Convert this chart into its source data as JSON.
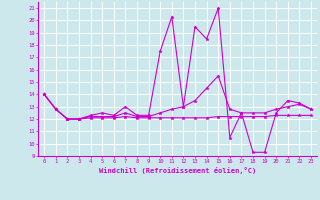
{
  "xlabel": "Windchill (Refroidissement éolien,°C)",
  "xlim": [
    -0.5,
    23.5
  ],
  "ylim": [
    9,
    21.5
  ],
  "yticks": [
    9,
    10,
    11,
    12,
    13,
    14,
    15,
    16,
    17,
    18,
    19,
    20,
    21
  ],
  "xticks": [
    0,
    1,
    2,
    3,
    4,
    5,
    6,
    7,
    8,
    9,
    10,
    11,
    12,
    13,
    14,
    15,
    16,
    17,
    18,
    19,
    20,
    21,
    22,
    23
  ],
  "background_color": "#cce8ed",
  "grid_color": "#ffffff",
  "line_color": "#cc00cc",
  "series": [
    [
      14.0,
      12.8,
      12.0,
      12.0,
      12.3,
      12.5,
      12.3,
      13.0,
      12.3,
      12.3,
      17.5,
      20.3,
      13.0,
      19.5,
      18.5,
      21.0,
      10.5,
      12.5,
      9.3,
      9.3,
      12.5,
      13.5,
      13.3,
      12.8
    ],
    [
      14.0,
      12.8,
      12.0,
      12.0,
      12.2,
      12.2,
      12.2,
      12.5,
      12.2,
      12.2,
      12.5,
      12.8,
      13.0,
      13.5,
      14.5,
      15.5,
      12.8,
      12.5,
      12.5,
      12.5,
      12.8,
      13.0,
      13.2,
      12.8
    ],
    [
      14.0,
      12.8,
      12.0,
      12.0,
      12.1,
      12.1,
      12.1,
      12.2,
      12.1,
      12.1,
      12.1,
      12.1,
      12.1,
      12.1,
      12.1,
      12.2,
      12.2,
      12.2,
      12.2,
      12.2,
      12.3,
      12.3,
      12.3,
      12.3
    ]
  ]
}
